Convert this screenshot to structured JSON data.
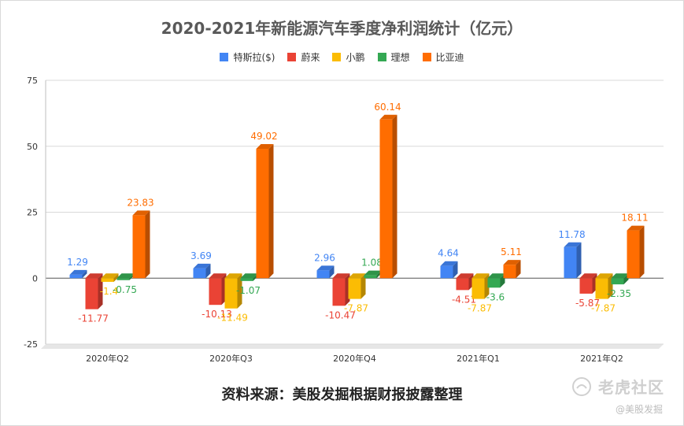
{
  "title": "2020-2021年新能源汽车季度净利润统计（亿元）",
  "source": "资料来源：美股发掘根据财报披露整理",
  "watermark": {
    "main": "老虎社区",
    "sub": "@美股发掘"
  },
  "chart_data": {
    "type": "bar",
    "title": "2020-2021年新能源汽车季度净利润统计（亿元）",
    "categories": [
      "2020年Q2",
      "2020年Q3",
      "2020年Q4",
      "2021年Q1",
      "2021年Q2"
    ],
    "ylim": [
      -25,
      75
    ],
    "yticks": [
      -25,
      0,
      25,
      50,
      75
    ],
    "grid": true,
    "legend_position": "top",
    "series": [
      {
        "name": "特斯拉($)",
        "color": "#4285f4",
        "values": [
          1.29,
          3.69,
          2.96,
          4.64,
          11.78
        ]
      },
      {
        "name": "蔚来",
        "color": "#ea4335",
        "values": [
          -11.77,
          -10.13,
          -10.47,
          -4.51,
          -5.87
        ]
      },
      {
        "name": "小鹏",
        "color": "#fbbc04",
        "values": [
          -1.4,
          -11.49,
          -7.87,
          -7.87,
          -7.87
        ]
      },
      {
        "name": "理想",
        "color": "#34a853",
        "values": [
          -0.75,
          -1.07,
          1.08,
          -3.6,
          -2.35
        ]
      },
      {
        "name": "比亚迪",
        "color": "#ff6d01",
        "values": [
          23.83,
          49.02,
          60.14,
          5.11,
          18.11
        ]
      }
    ]
  }
}
